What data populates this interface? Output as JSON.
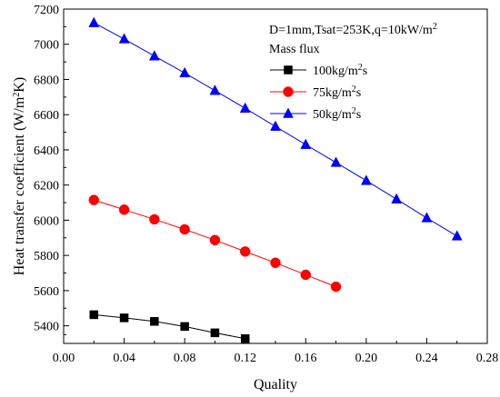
{
  "chart_data": {
    "type": "line",
    "xlabel": "Quality",
    "ylabel_parts": [
      "Heat transfer coefficient (W/m",
      "2",
      "K)"
    ],
    "xlim": [
      0.0,
      0.28
    ],
    "ylim": [
      5300,
      7200
    ],
    "x_ticks": [
      0.0,
      0.04,
      0.08,
      0.12,
      0.16,
      0.2,
      0.24,
      0.28
    ],
    "x_tick_labels": [
      "0.00",
      "0.04",
      "0.08",
      "0.12",
      "0.16",
      "0.20",
      "0.24",
      "0.28"
    ],
    "y_ticks": [
      5400,
      5600,
      5800,
      6000,
      6200,
      6400,
      6600,
      6800,
      7000,
      7200
    ],
    "y_tick_labels": [
      "5400",
      "5600",
      "5800",
      "6000",
      "6200",
      "6400",
      "6600",
      "6800",
      "7000",
      "7200"
    ],
    "annotation_parts": [
      "D=1mm,Tsat=253K,q=10kW/m",
      "2"
    ],
    "legend_title": "Mass flux",
    "legend_position": "top-right",
    "grid": false,
    "series": [
      {
        "name_parts": [
          "100kg/m",
          "2",
          "s"
        ],
        "color": "#000000",
        "marker": "square",
        "x": [
          0.02,
          0.04,
          0.06,
          0.08,
          0.1,
          0.12
        ],
        "y": [
          5463,
          5445,
          5425,
          5396,
          5360,
          5327
        ]
      },
      {
        "name_parts": [
          "75kg/m",
          "2",
          "s"
        ],
        "color": "#ff0000",
        "marker": "circle",
        "x": [
          0.02,
          0.04,
          0.06,
          0.08,
          0.1,
          0.12,
          0.14,
          0.16,
          0.18
        ],
        "y": [
          6115,
          6060,
          6005,
          5948,
          5887,
          5822,
          5758,
          5690,
          5622
        ]
      },
      {
        "name_parts": [
          "50kg/m",
          "2",
          "s"
        ],
        "color": "#0000ff",
        "marker": "triangle",
        "x": [
          0.02,
          0.04,
          0.06,
          0.08,
          0.1,
          0.12,
          0.14,
          0.16,
          0.18,
          0.2,
          0.22,
          0.24,
          0.26
        ],
        "y": [
          7122,
          7030,
          6933,
          6837,
          6737,
          6636,
          6533,
          6430,
          6328,
          6225,
          6120,
          6013,
          5910
        ]
      }
    ]
  }
}
